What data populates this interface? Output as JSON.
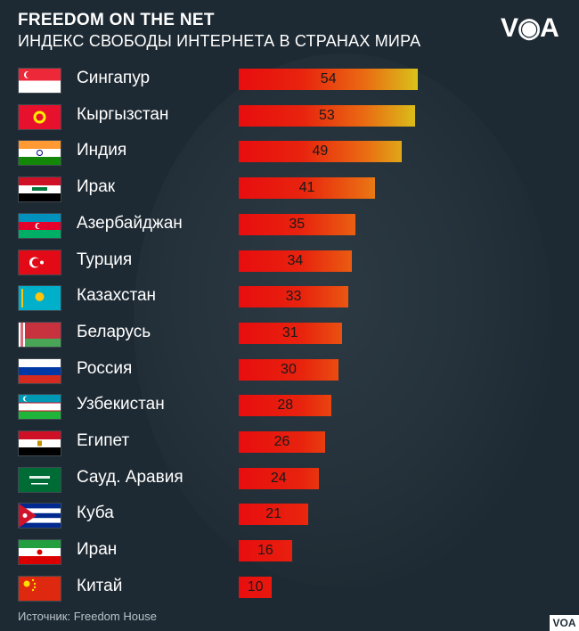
{
  "header": {
    "title": "FREEDOM ON THE NET",
    "subtitle": "ИНДЕКС СВОБОДЫ ИНТЕРНЕТА В СТРАНАХ МИРА",
    "logo": "V◉A"
  },
  "source": "Источник: Freedom House",
  "corner_badge": "VOA",
  "chart_data": {
    "type": "bar",
    "orientation": "horizontal",
    "title": "FREEDOM ON THE NET",
    "subtitle": "ИНДЕКС СВОБОДЫ ИНТЕРНЕТА В СТРАНАХ МИРА",
    "xlim": [
      0,
      100
    ],
    "grid": false,
    "legend": "none",
    "categories": [
      "Сингапур",
      "Кыргызстан",
      "Индия",
      "Ирак",
      "Азербайджан",
      "Турция",
      "Казахстан",
      "Беларусь",
      "Россия",
      "Узбекистан",
      "Египет",
      "Сауд. Аравия",
      "Куба",
      "Иран",
      "Китай"
    ],
    "values": [
      54,
      53,
      49,
      41,
      35,
      34,
      33,
      31,
      30,
      28,
      26,
      24,
      21,
      16,
      10
    ],
    "flags": [
      "singapore",
      "kyrgyzstan",
      "india",
      "iraq",
      "azerbaijan",
      "turkey",
      "kazakhstan",
      "belarus",
      "russia",
      "uzbekistan",
      "egypt",
      "saudi-arabia",
      "cuba",
      "iran",
      "china"
    ],
    "colors": {
      "low": "#e80d0f",
      "high": "#d9c21a"
    }
  }
}
